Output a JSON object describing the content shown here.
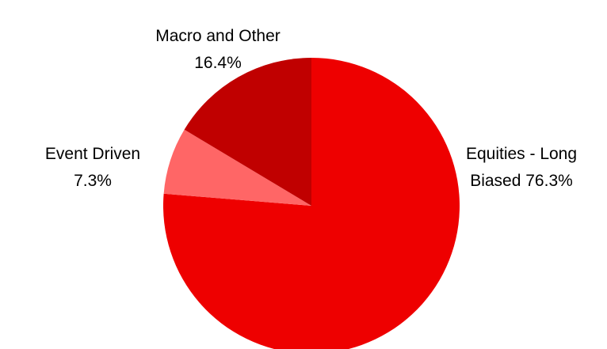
{
  "chart_data": {
    "type": "pie",
    "title": "",
    "slices": [
      {
        "label_line1": "Equities - Long",
        "label_line2": "Biased 76.3%",
        "name": "Equities - Long Biased",
        "value": 76.3,
        "color": "#ee0000"
      },
      {
        "label_line1": "Event Driven",
        "label_line2": "7.3%",
        "name": "Event Driven",
        "value": 7.3,
        "color": "#ff6666"
      },
      {
        "label_line1": "Macro and Other",
        "label_line2": "16.4%",
        "name": "Macro and Other",
        "value": 16.4,
        "color": "#c00000"
      }
    ]
  }
}
